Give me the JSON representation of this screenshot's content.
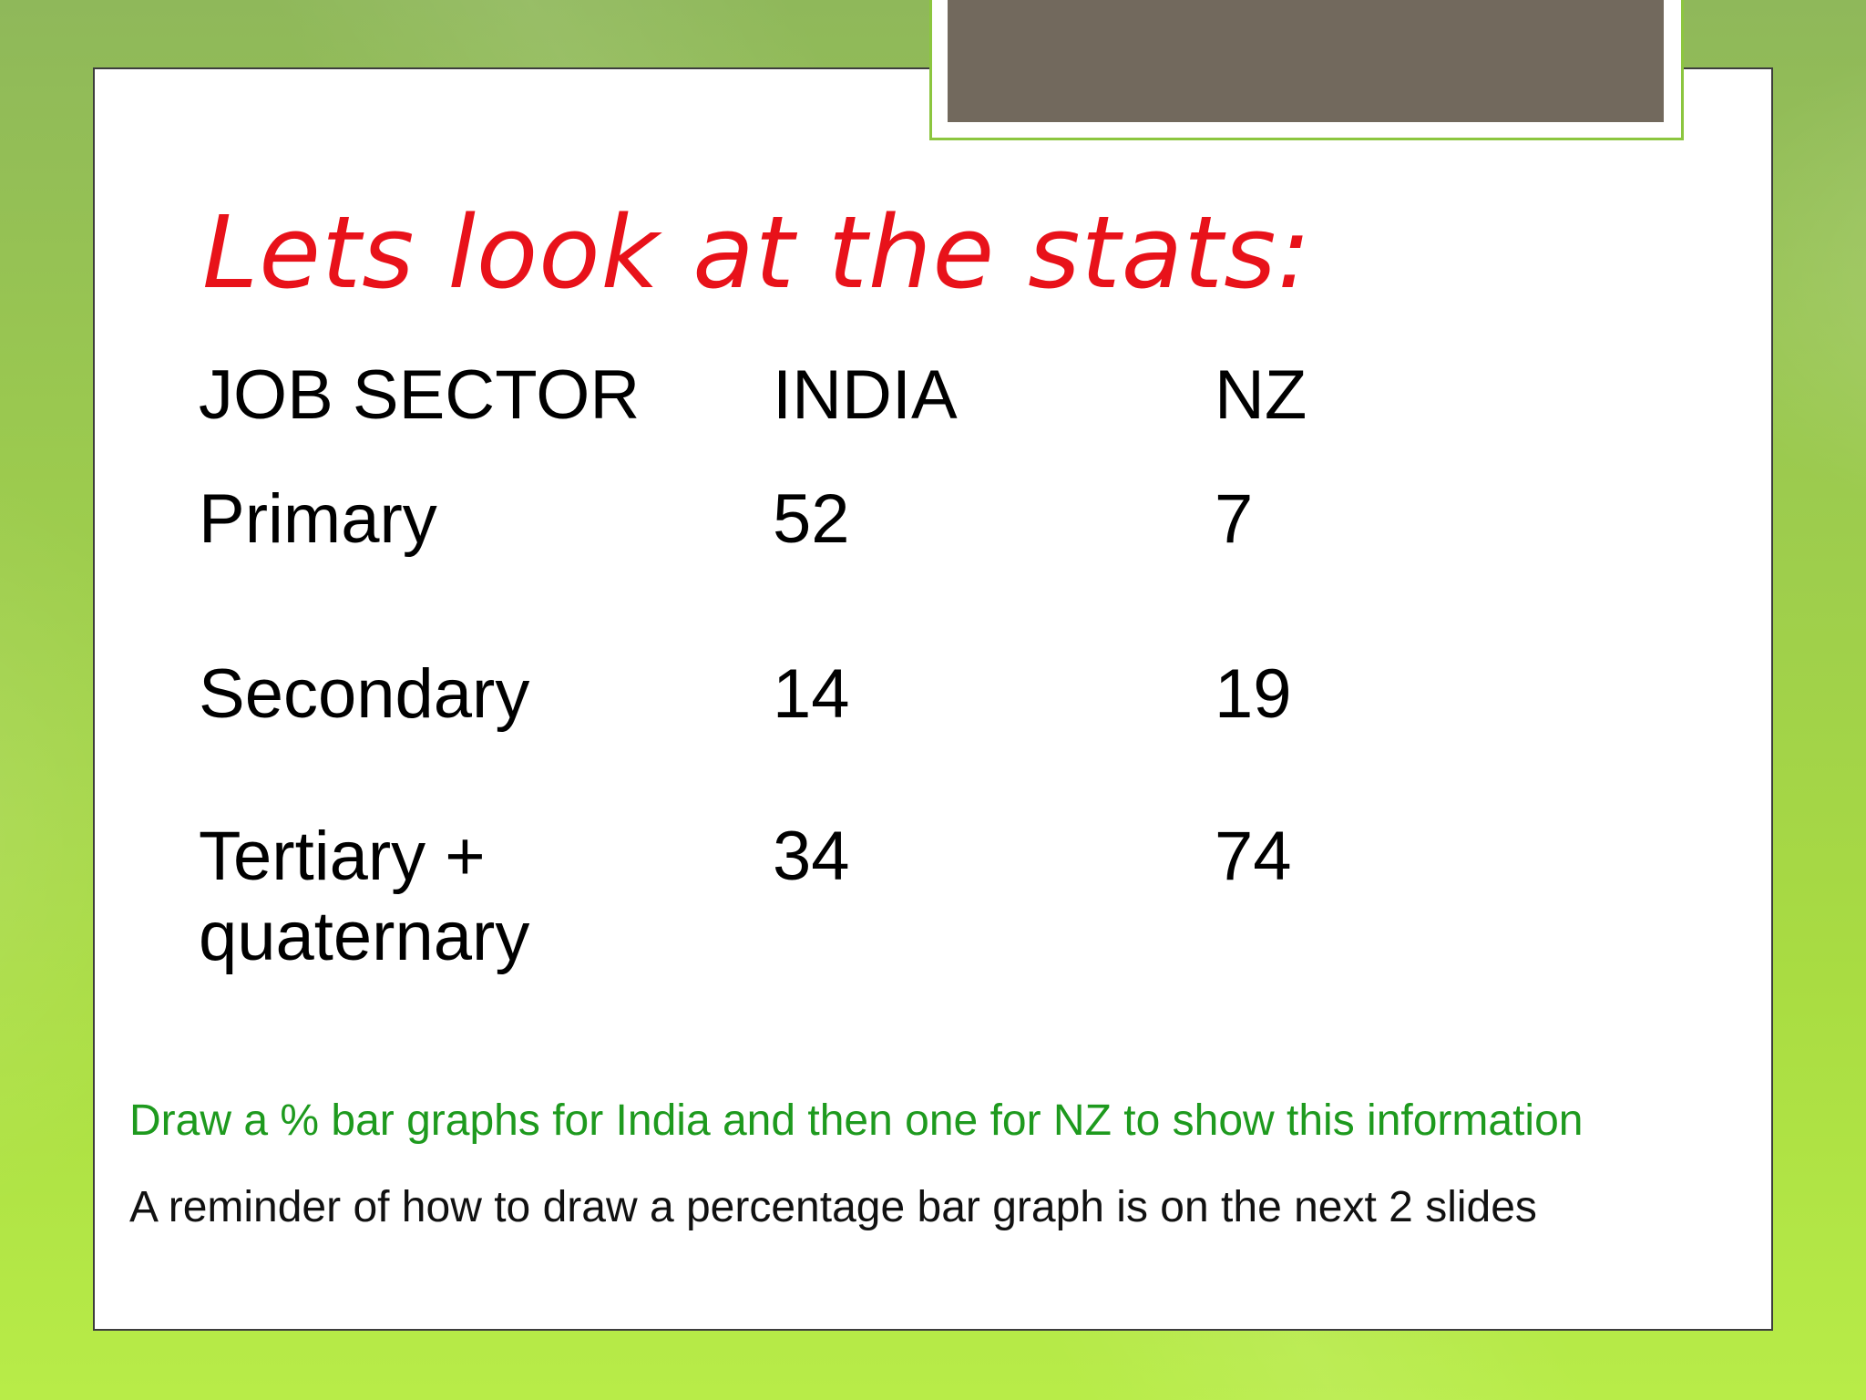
{
  "slide": {
    "title": "Lets look at the stats:",
    "table": {
      "headers": [
        "JOB SECTOR",
        "INDIA",
        "NZ"
      ],
      "rows": [
        {
          "sector": "Primary",
          "india": "52",
          "nz": "7"
        },
        {
          "sector": "Secondary",
          "india": "14",
          "nz": "19"
        },
        {
          "sector_line1": "Tertiary +",
          "sector_line2": "quaternary",
          "india": "34",
          "nz": "74"
        }
      ]
    },
    "instruction": "Draw a % bar graphs for India and then one for NZ to show this information",
    "reminder": "A reminder of how to draw a percentage bar graph is on the next 2 slides"
  },
  "colors": {
    "title": "#e8121a",
    "instruction": "#1e9a1e",
    "tab_fill": "#72695d",
    "tab_border": "#8cc63f",
    "background": "#9ccb4e"
  }
}
